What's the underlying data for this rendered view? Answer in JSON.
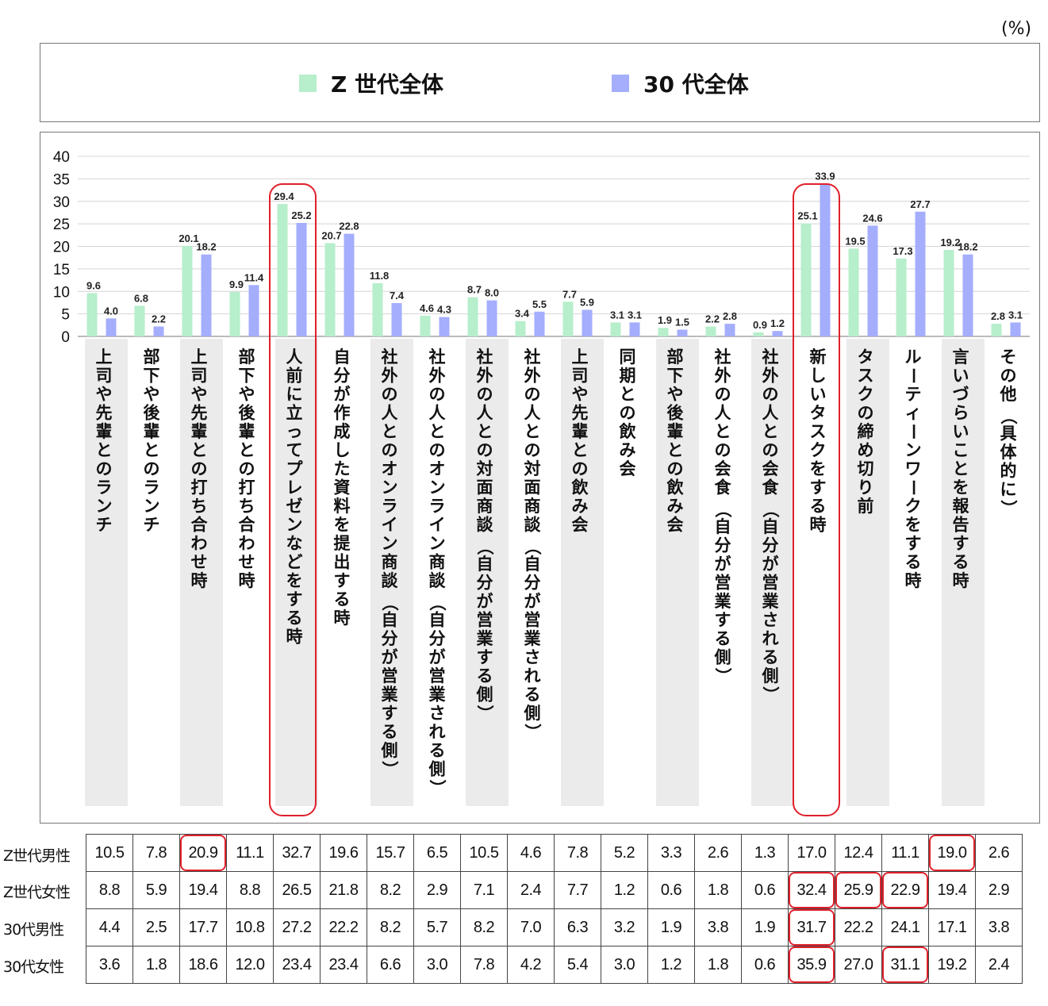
{
  "unit_label": "(%)",
  "colors": {
    "z_series": "#b7eecb",
    "s30_series": "#a4aefc",
    "label_band": "#ebebeb",
    "highlight": "#e0202b"
  },
  "legend": [
    {
      "name": "Z 世代全体",
      "color": "#b7eecb"
    },
    {
      "name": "30 代全体",
      "color": "#a4aefc"
    }
  ],
  "chart_data": {
    "type": "bar",
    "ylim": [
      0,
      40
    ],
    "yticks": [
      0,
      5,
      10,
      15,
      20,
      25,
      30,
      35,
      40
    ],
    "grid": true,
    "legend_position": "top",
    "categories": [
      "上司や先輩とのランチ",
      "部下や後輩とのランチ",
      "上司や先輩との打ち合わせ時",
      "部下や後輩との打ち合わせ時",
      "人前に立ってプレゼンなどをする時",
      "自分が作成した資料を提出する時",
      "社外の人とのオンライン商談（自分が営業する側）",
      "社外の人とのオンライン商談（自分が営業される側）",
      "社外の人との対面商談（自分が営業する側）",
      "社外の人との対面商談（自分が営業される側）",
      "上司や先輩との飲み会",
      "同期との飲み会",
      "部下や後輩との飲み会",
      "社外の人との会食（自分が営業する側）",
      "社外の人との会食（自分が営業される側）",
      "新しいタスクをする時",
      "タスクの締め切り前",
      "ルーティーンワークをする時",
      "言いづらいことを報告する時",
      "その他（具体的に）"
    ],
    "series": [
      {
        "name": "Z 世代全体",
        "values": [
          9.6,
          6.8,
          20.1,
          9.9,
          29.4,
          20.7,
          11.8,
          4.6,
          8.7,
          3.4,
          7.7,
          3.1,
          1.9,
          2.2,
          0.9,
          25.1,
          19.5,
          17.3,
          19.2,
          2.8
        ]
      },
      {
        "name": "30 代全体",
        "values": [
          4.0,
          2.2,
          18.2,
          11.4,
          25.2,
          22.8,
          7.4,
          4.3,
          8.0,
          5.5,
          5.9,
          3.1,
          1.5,
          2.8,
          1.2,
          33.9,
          24.6,
          27.7,
          18.2,
          3.1
        ]
      }
    ],
    "highlighted_categories": [
      4,
      15
    ]
  },
  "table": {
    "rows": [
      {
        "label": "Z世代男性",
        "values": [
          "10.5",
          "7.8",
          "20.9",
          "11.1",
          "32.7",
          "19.6",
          "15.7",
          "6.5",
          "10.5",
          "4.6",
          "7.8",
          "5.2",
          "3.3",
          "2.6",
          "1.3",
          "17.0",
          "12.4",
          "11.1",
          "19.0",
          "2.6"
        ]
      },
      {
        "label": "Z世代女性",
        "values": [
          "8.8",
          "5.9",
          "19.4",
          "8.8",
          "26.5",
          "21.8",
          "8.2",
          "2.9",
          "7.1",
          "2.4",
          "7.7",
          "1.2",
          "0.6",
          "1.8",
          "0.6",
          "32.4",
          "25.9",
          "22.9",
          "19.4",
          "2.9"
        ]
      },
      {
        "label": "30代男性",
        "values": [
          "4.4",
          "2.5",
          "17.7",
          "10.8",
          "27.2",
          "22.2",
          "8.2",
          "5.7",
          "8.2",
          "7.0",
          "6.3",
          "3.2",
          "1.9",
          "3.8",
          "1.9",
          "31.7",
          "22.2",
          "24.1",
          "17.1",
          "3.8"
        ]
      },
      {
        "label": "30代女性",
        "values": [
          "3.6",
          "1.8",
          "18.6",
          "12.0",
          "23.4",
          "23.4",
          "6.6",
          "3.0",
          "7.8",
          "4.2",
          "5.4",
          "3.0",
          "1.2",
          "1.8",
          "0.6",
          "35.9",
          "27.0",
          "31.1",
          "19.2",
          "2.4"
        ]
      }
    ],
    "highlighted_cells": [
      [
        0,
        2
      ],
      [
        0,
        18
      ],
      [
        1,
        15
      ],
      [
        1,
        16
      ],
      [
        1,
        17
      ],
      [
        2,
        15
      ],
      [
        3,
        15
      ],
      [
        3,
        17
      ]
    ]
  }
}
